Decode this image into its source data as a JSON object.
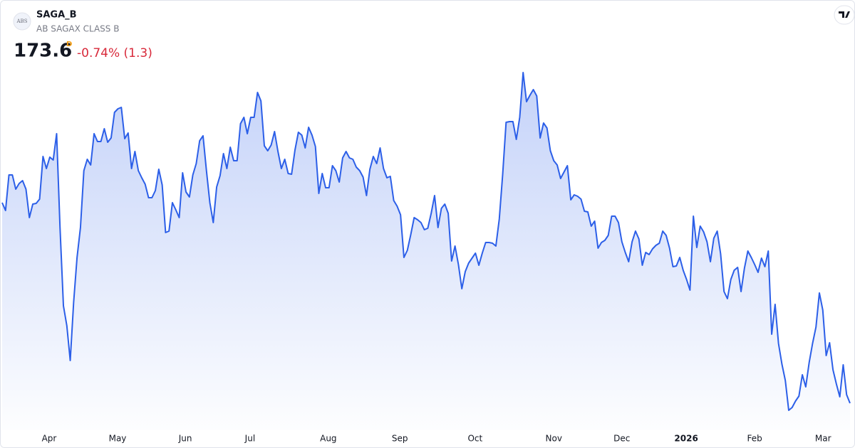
{
  "chart_data": {
    "type": "area",
    "title": "SAGA_B",
    "subtitle": "AB SAGAX CLASS B",
    "logo": "ABS",
    "price": 173.6,
    "interval": "D",
    "change": "-0.74% (1.3)",
    "color": "#2c5fe8",
    "change_color": "#d8293a",
    "interval_color": "#f59d0e",
    "xlim": [
      0,
      249
    ],
    "ylim": [
      167.3,
      230.3
    ],
    "xticks": [
      {
        "value": 13.8,
        "label": "Apr"
      },
      {
        "value": 33.9,
        "label": "May"
      },
      {
        "value": 53.8,
        "label": "Jun"
      },
      {
        "value": 72.8,
        "label": "Jul"
      },
      {
        "value": 95.8,
        "label": "Aug"
      },
      {
        "value": 116.8,
        "label": "Sep"
      },
      {
        "value": 138.9,
        "label": "Oct"
      },
      {
        "value": 162.0,
        "label": "Nov"
      },
      {
        "value": 182.0,
        "label": "Dec"
      },
      {
        "value": 200.9,
        "label": "2026",
        "bold": true
      },
      {
        "value": 221.0,
        "label": "Feb"
      },
      {
        "value": 241.1,
        "label": "Mar"
      }
    ],
    "values": [
      201.8,
      200.7,
      205.7,
      205.7,
      203.7,
      204.5,
      204.9,
      203.7,
      199.7,
      201.6,
      201.7,
      202.3,
      208.3,
      206.6,
      208.2,
      207.8,
      211.5,
      198.3,
      187.3,
      184.5,
      179.6,
      187.8,
      194.1,
      198.3,
      206.3,
      207.9,
      207.1,
      211.5,
      210.4,
      210.4,
      212.2,
      210.3,
      210.9,
      214.5,
      215.0,
      215.2,
      210.8,
      211.6,
      206.6,
      209.0,
      206.3,
      205.3,
      204.4,
      202.5,
      202.5,
      203.5,
      206.5,
      204.3,
      197.6,
      197.8,
      201.8,
      200.8,
      199.7,
      206.0,
      203.3,
      202.6,
      205.7,
      207.3,
      210.5,
      211.2,
      206.3,
      201.8,
      199.0,
      204.0,
      205.6,
      208.7,
      206.6,
      209.6,
      207.7,
      207.7,
      212.9,
      213.8,
      211.5,
      213.8,
      213.8,
      217.3,
      216.1,
      209.8,
      209.1,
      209.9,
      211.8,
      209.0,
      206.6,
      207.9,
      205.9,
      205.8,
      209.2,
      211.7,
      211.3,
      209.5,
      212.4,
      211.3,
      209.7,
      203.1,
      205.9,
      203.9,
      203.9,
      207.0,
      206.3,
      204.7,
      208.1,
      209.0,
      208.1,
      207.9,
      206.8,
      206.3,
      205.4,
      202.8,
      206.5,
      208.3,
      207.3,
      209.5,
      206.6,
      205.3,
      205.5,
      202.1,
      201.3,
      200.1,
      194.1,
      195.1,
      197.3,
      199.7,
      199.4,
      199.0,
      198.0,
      198.2,
      200.3,
      202.8,
      198.3,
      201.0,
      201.6,
      200.3,
      193.6,
      195.7,
      193.1,
      189.7,
      192.1,
      193.3,
      194.0,
      194.7,
      193.0,
      194.7,
      196.2,
      196.2,
      196.1,
      195.7,
      199.5,
      205.8,
      213.1,
      213.2,
      213.2,
      210.7,
      213.8,
      220.1,
      216.0,
      216.9,
      217.7,
      216.8,
      210.9,
      213.0,
      212.3,
      209.1,
      207.7,
      207.1,
      205.2,
      206.1,
      207.0,
      202.2,
      202.9,
      202.7,
      202.3,
      200.6,
      200.5,
      198.5,
      199.2,
      195.4,
      196.2,
      196.5,
      197.2,
      199.9,
      199.9,
      199.0,
      196.3,
      194.8,
      193.5,
      196.3,
      197.8,
      196.7,
      193.0,
      194.8,
      194.5,
      195.3,
      195.8,
      196.1,
      197.8,
      197.2,
      195.4,
      192.8,
      192.9,
      194.1,
      192.3,
      191.0,
      189.5,
      199.9,
      195.5,
      198.5,
      197.7,
      196.3,
      193.5,
      196.8,
      197.8,
      194.6,
      189.3,
      188.3,
      191.0,
      192.3,
      192.7,
      189.3,
      192.6,
      195.0,
      194.1,
      193.1,
      192.0,
      194.0,
      192.8,
      195.0,
      183.3,
      187.5,
      182.0,
      179.1,
      176.8,
      172.6,
      173.0,
      173.9,
      174.6,
      177.6,
      175.9,
      179.3,
      182.0,
      184.3,
      189.1,
      186.7,
      180.3,
      182.1,
      178.3,
      176.3,
      174.5,
      179.0,
      174.8,
      173.6
    ]
  }
}
